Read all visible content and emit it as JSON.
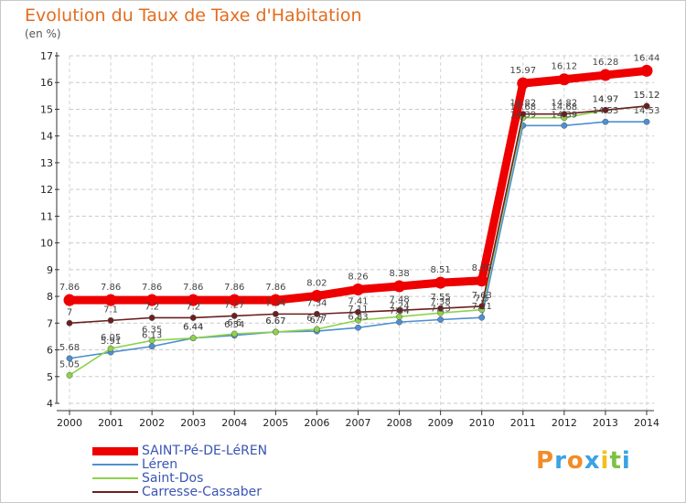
{
  "title": "Evolution du Taux de Taxe d'Habitation",
  "unit": "(en %)",
  "brand": "Proxiti",
  "colors": {
    "title": "#e36c1e",
    "legend_text": "#3a55b4"
  },
  "chart_data": {
    "type": "line",
    "title": "Evolution du Taux de Taxe d'Habitation",
    "ylabel": "(en %)",
    "xlabel": "",
    "ylim": [
      4,
      17
    ],
    "grid": "horizontal-dashed",
    "categories": [
      "2000",
      "2001",
      "2002",
      "2003",
      "2004",
      "2005",
      "2006",
      "2007",
      "2008",
      "2009",
      "2010",
      "2011",
      "2012",
      "2013",
      "2014"
    ],
    "yticks": [
      "4",
      "5",
      "6",
      "7",
      "8",
      "9",
      "10",
      "11",
      "12",
      "13",
      "14",
      "15",
      "16",
      "17"
    ],
    "series": [
      {
        "name": "SAINT-Pé-DE-LéREN",
        "color": "#ee0000",
        "emphasis": "bold",
        "values": [
          7.86,
          7.86,
          7.86,
          7.86,
          7.86,
          7.86,
          8.02,
          8.26,
          8.38,
          8.51,
          8.59,
          15.97,
          16.12,
          16.28,
          16.44
        ],
        "labels": [
          "7.86",
          "7.86",
          "7.86",
          "7.86",
          "7.86",
          "7.86",
          "8.02",
          "8.26",
          "8.38",
          "8.51",
          "8.59",
          "15.97",
          "16.12",
          "16.28",
          "16.44"
        ]
      },
      {
        "name": "Léren",
        "color": "#4e8fd0",
        "emphasis": "normal",
        "values": [
          5.68,
          5.91,
          6.13,
          6.44,
          6.54,
          6.67,
          6.7,
          6.83,
          7.04,
          7.13,
          7.21,
          14.39,
          14.39,
          14.53,
          14.53
        ],
        "labels": [
          "5.68",
          "5.91",
          "6.13",
          "6.44",
          "6.54",
          "6.67",
          "6.7",
          "6.83",
          "7.04",
          "7.13",
          "7.21",
          "14.39",
          "14.39",
          "14.53",
          "14.53"
        ]
      },
      {
        "name": "Saint-Dos",
        "color": "#8dd34a",
        "emphasis": "normal",
        "values": [
          5.05,
          6.05,
          6.35,
          6.44,
          6.6,
          6.67,
          6.77,
          7.11,
          7.24,
          7.38,
          7.5,
          14.68,
          14.68,
          14.97,
          15.12
        ],
        "labels": [
          "5.05",
          "6.05",
          "6.35",
          "6.44",
          "6.6",
          "6.67",
          "6.77",
          "7.11",
          "7.24",
          "7.38",
          "7.5",
          "14.68",
          "14.68",
          "14.97",
          "15.12"
        ]
      },
      {
        "name": "Carresse-Cassaber",
        "color": "#6b1f1f",
        "emphasis": "normal",
        "values": [
          7,
          7.1,
          7.2,
          7.2,
          7.27,
          7.34,
          7.34,
          7.41,
          7.48,
          7.55,
          7.63,
          14.82,
          14.82,
          14.97,
          15.12
        ],
        "labels": [
          "7",
          "7.1",
          "7.2",
          "7.2",
          "7.27",
          "7.34",
          "7.34",
          "7.41",
          "7.48",
          "7.55",
          "7.63",
          "14.82",
          "14.82",
          "14.97",
          "15.12"
        ]
      }
    ]
  }
}
